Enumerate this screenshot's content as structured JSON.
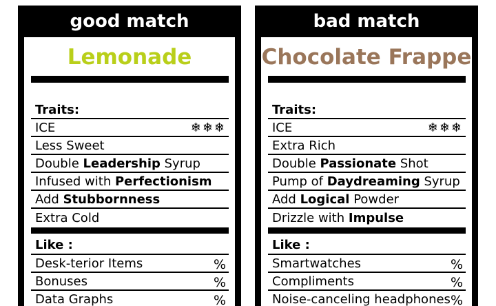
{
  "left": {
    "header": "good match",
    "drink_name": "Lemonade",
    "drink_color": "#b9cf1a",
    "traits_title": "Traits:",
    "ice_label": "ICE",
    "ice_icons": "❄❄❄",
    "traits": [
      {
        "pre": "Less Sweet",
        "bold": "",
        "post": ""
      },
      {
        "pre": "Double ",
        "bold": "Leadership",
        "post": " Syrup"
      },
      {
        "pre": "Infused with ",
        "bold": "Perfectionism",
        "post": ""
      },
      {
        "pre": "Add ",
        "bold": "Stubbornness",
        "post": ""
      },
      {
        "pre": "Extra Cold",
        "bold": "",
        "post": ""
      }
    ],
    "like_title": "Like :",
    "likes": [
      {
        "label": "Desk-terior Items",
        "pct": "%"
      },
      {
        "label": "Bonuses",
        "pct": "%"
      },
      {
        "label": "Data Graphs",
        "pct": "%"
      }
    ]
  },
  "right": {
    "header": "bad match",
    "drink_name": "Chocolate Frappe",
    "drink_color": "#9a765a",
    "traits_title": "Traits:",
    "ice_label": "ICE",
    "ice_icons": "❄❄❄",
    "traits": [
      {
        "pre": "Extra Rich",
        "bold": "",
        "post": ""
      },
      {
        "pre": "Double ",
        "bold": "Passionate",
        "post": " Shot"
      },
      {
        "pre": "Pump of ",
        "bold": "Daydreaming",
        "post": " Syrup"
      },
      {
        "pre": "Add ",
        "bold": "Logical",
        "post": " Powder"
      },
      {
        "pre": "Drizzle with ",
        "bold": "Impulse",
        "post": ""
      }
    ],
    "like_title": "Like :",
    "likes": [
      {
        "label": "Smartwatches",
        "pct": "%"
      },
      {
        "label": "Compliments",
        "pct": "%"
      },
      {
        "label": "Noise-canceling headphones",
        "pct": "%"
      }
    ]
  }
}
